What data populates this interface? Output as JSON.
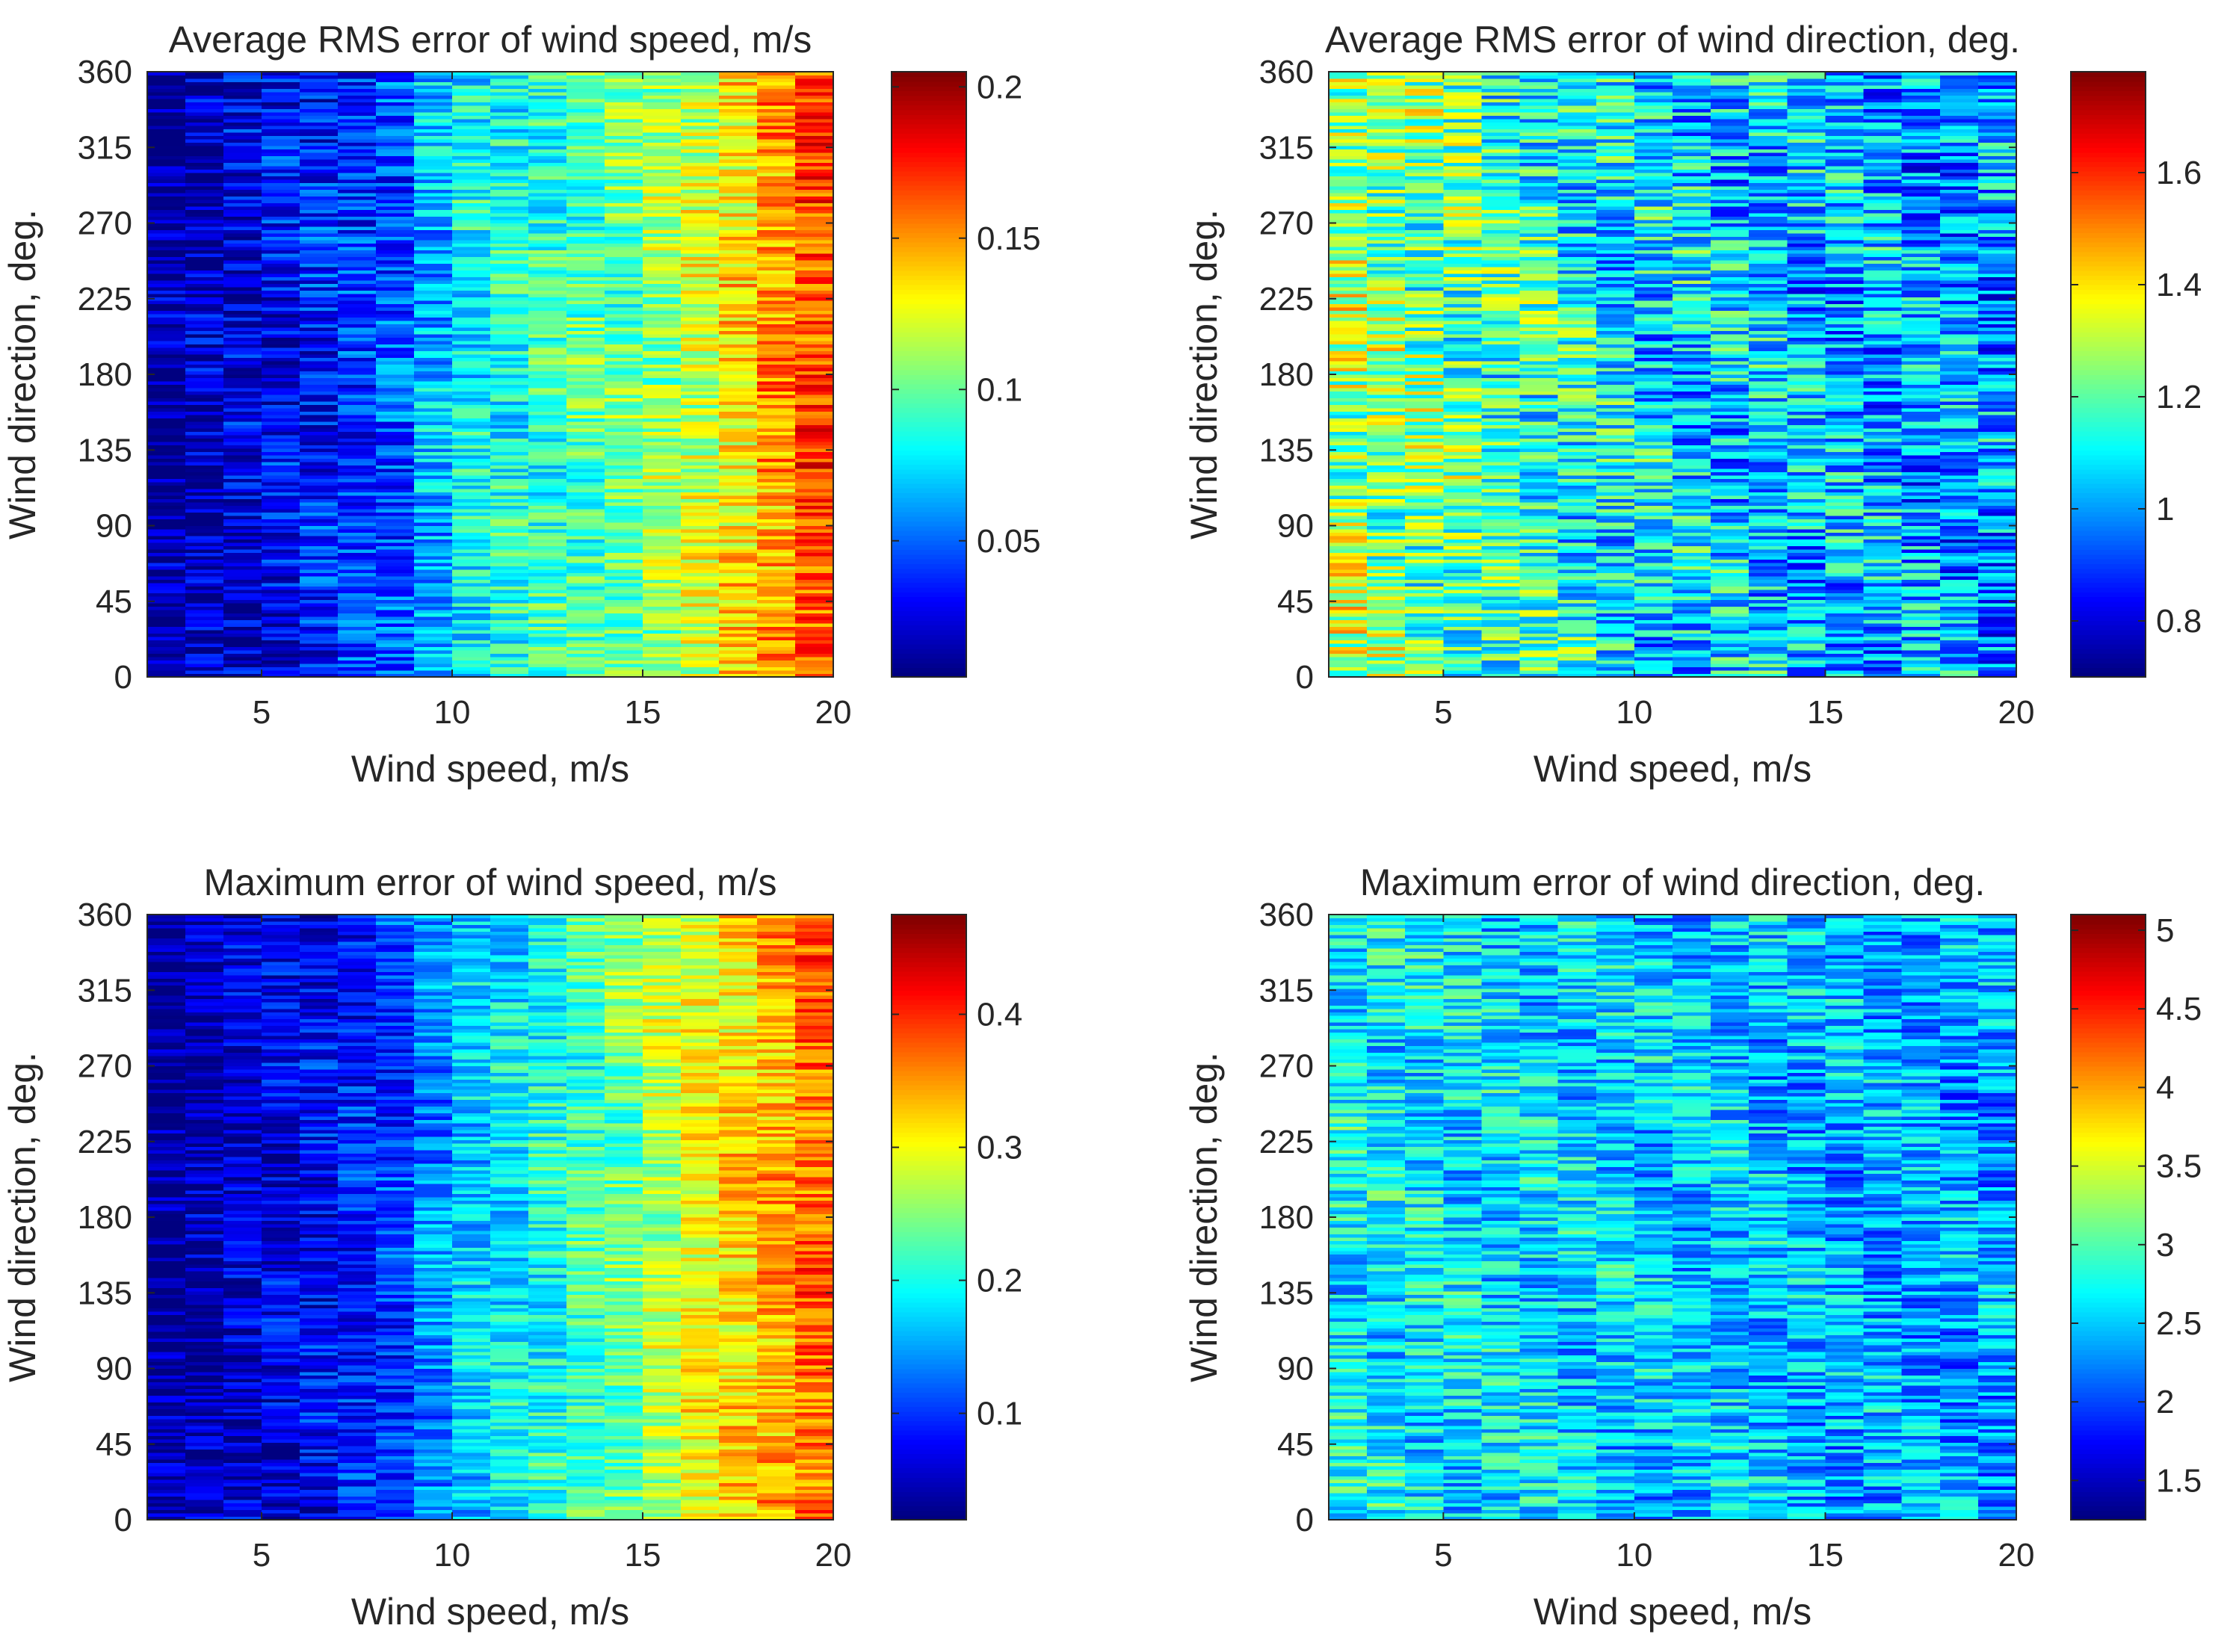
{
  "chart_data": [
    {
      "type": "heatmap",
      "title": "Average RMS error of wind speed, m/s",
      "xlabel": "Wind speed, m/s",
      "ylabel": "Wind direction, deg.",
      "xlim": [
        2,
        20
      ],
      "ylim": [
        0,
        360
      ],
      "x_ticks": [
        5,
        10,
        15,
        20
      ],
      "y_ticks": [
        0,
        45,
        90,
        135,
        180,
        225,
        270,
        315,
        360
      ],
      "x_bins": [
        2,
        3,
        4,
        5,
        6,
        7,
        8,
        9,
        10,
        11,
        12,
        13,
        14,
        15,
        16,
        17,
        18,
        19,
        20
      ],
      "y_step_deg": 2,
      "colormap": "jet",
      "clim": [
        0.005,
        0.205
      ],
      "colorbar_ticks": [
        0.05,
        0.1,
        0.15,
        0.2
      ],
      "colorbar_tick_labels": [
        "0.05",
        "0.1",
        "0.15",
        "0.2"
      ],
      "column_mean_values": [
        0.01,
        0.018,
        0.025,
        0.03,
        0.035,
        0.04,
        0.045,
        0.065,
        0.08,
        0.085,
        0.09,
        0.095,
        0.1,
        0.11,
        0.12,
        0.135,
        0.15,
        0.165,
        0.19
      ],
      "row_noise": 0.035,
      "seed": 11
    },
    {
      "type": "heatmap",
      "title": "Average RMS error of wind direction, deg.",
      "xlabel": "Wind speed, m/s",
      "ylabel": "Wind direction, deg.",
      "xlim": [
        2,
        20
      ],
      "ylim": [
        0,
        360
      ],
      "x_ticks": [
        5,
        10,
        15,
        20
      ],
      "y_ticks": [
        0,
        45,
        90,
        135,
        180,
        225,
        270,
        315,
        360
      ],
      "x_bins": [
        2,
        3,
        4,
        5,
        6,
        7,
        8,
        9,
        10,
        11,
        12,
        13,
        14,
        15,
        16,
        17,
        18,
        19,
        20
      ],
      "y_step_deg": 2,
      "colormap": "jet",
      "clim": [
        0.7,
        1.78
      ],
      "colorbar_ticks": [
        0.8,
        1,
        1.2,
        1.4,
        1.6
      ],
      "colorbar_tick_labels": [
        "0.8",
        "1",
        "1.2",
        "1.4",
        "1.6"
      ],
      "column_mean_values": [
        1.28,
        1.25,
        1.22,
        1.2,
        1.17,
        1.15,
        1.12,
        1.1,
        1.08,
        1.07,
        1.06,
        1.05,
        1.04,
        1.03,
        1.02,
        1.01,
        1.0,
        0.99,
        0.98
      ],
      "row_noise": 0.28,
      "seed": 23
    },
    {
      "type": "heatmap",
      "title": "Maximum error of wind speed, m/s",
      "xlabel": "Wind speed, m/s",
      "ylabel": "Wind direction, deg.",
      "xlim": [
        2,
        20
      ],
      "ylim": [
        0,
        360
      ],
      "x_ticks": [
        5,
        10,
        15,
        20
      ],
      "y_ticks": [
        0,
        45,
        90,
        135,
        180,
        225,
        270,
        315,
        360
      ],
      "x_bins": [
        2,
        3,
        4,
        5,
        6,
        7,
        8,
        9,
        10,
        11,
        12,
        13,
        14,
        15,
        16,
        17,
        18,
        19,
        20
      ],
      "y_step_deg": 2,
      "colormap": "jet",
      "clim": [
        0.02,
        0.475
      ],
      "colorbar_ticks": [
        0.1,
        0.2,
        0.3,
        0.4
      ],
      "colorbar_tick_labels": [
        "0.1",
        "0.2",
        "0.3",
        "0.4"
      ],
      "column_mean_values": [
        0.03,
        0.04,
        0.055,
        0.065,
        0.075,
        0.085,
        0.1,
        0.14,
        0.17,
        0.185,
        0.2,
        0.22,
        0.24,
        0.27,
        0.3,
        0.32,
        0.34,
        0.37,
        0.42
      ],
      "row_noise": 0.07,
      "seed": 37
    },
    {
      "type": "heatmap",
      "title": "Maximum error of wind direction, deg.",
      "xlabel": "Wind speed, m/s",
      "ylabel": "Wind direction, deg.",
      "xlim": [
        2,
        20
      ],
      "ylim": [
        0,
        360
      ],
      "x_ticks": [
        5,
        10,
        15,
        20
      ],
      "y_ticks": [
        0,
        45,
        90,
        135,
        180,
        225,
        270,
        315,
        360
      ],
      "x_bins": [
        2,
        3,
        4,
        5,
        6,
        7,
        8,
        9,
        10,
        11,
        12,
        13,
        14,
        15,
        16,
        17,
        18,
        19,
        20
      ],
      "y_step_deg": 2,
      "colormap": "jet",
      "clim": [
        1.25,
        5.1
      ],
      "colorbar_ticks": [
        1.5,
        2,
        2.5,
        3,
        3.5,
        4,
        4.5,
        5
      ],
      "colorbar_tick_labels": [
        "1.5",
        "2",
        "2.5",
        "3",
        "3.5",
        "4",
        "4.5",
        "5"
      ],
      "column_mean_values": [
        2.7,
        2.68,
        2.65,
        2.62,
        2.6,
        2.58,
        2.55,
        2.52,
        2.5,
        2.48,
        2.46,
        2.44,
        2.42,
        2.4,
        2.38,
        2.36,
        2.34,
        2.32,
        2.3
      ],
      "row_noise": 0.75,
      "seed": 51
    }
  ]
}
